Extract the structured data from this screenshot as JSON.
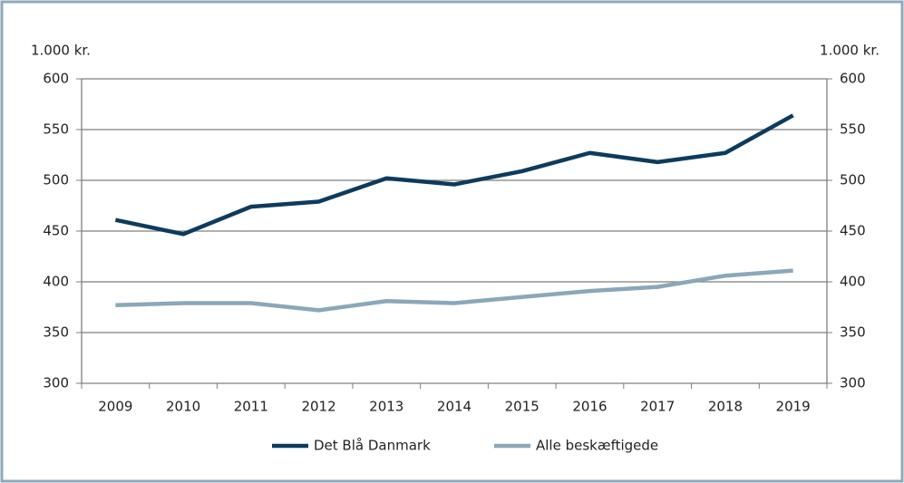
{
  "chart_data": {
    "type": "line",
    "y_label": "1.000 kr.",
    "y2_label": "1.000 kr.",
    "categories": [
      "2009",
      "2010",
      "2011",
      "2012",
      "2013",
      "2014",
      "2015",
      "2016",
      "2017",
      "2018",
      "2019"
    ],
    "series": [
      {
        "name": "Det Blå Danmark",
        "color": "#0d3b5e",
        "values": [
          461,
          447,
          474,
          479,
          502,
          496,
          509,
          527,
          518,
          527,
          564
        ]
      },
      {
        "name": "Alle beskæftigede",
        "color": "#8ba7ba",
        "values": [
          377,
          379,
          379,
          372,
          381,
          379,
          385,
          391,
          395,
          406,
          411
        ]
      }
    ],
    "ylim": [
      300,
      600
    ],
    "yticks": [
      300,
      350,
      400,
      450,
      500,
      550,
      600
    ],
    "y2lim": [
      300,
      600
    ],
    "y2ticks": [
      300,
      350,
      400,
      450,
      500,
      550,
      600
    ],
    "grid": true,
    "legend": "bottom"
  }
}
